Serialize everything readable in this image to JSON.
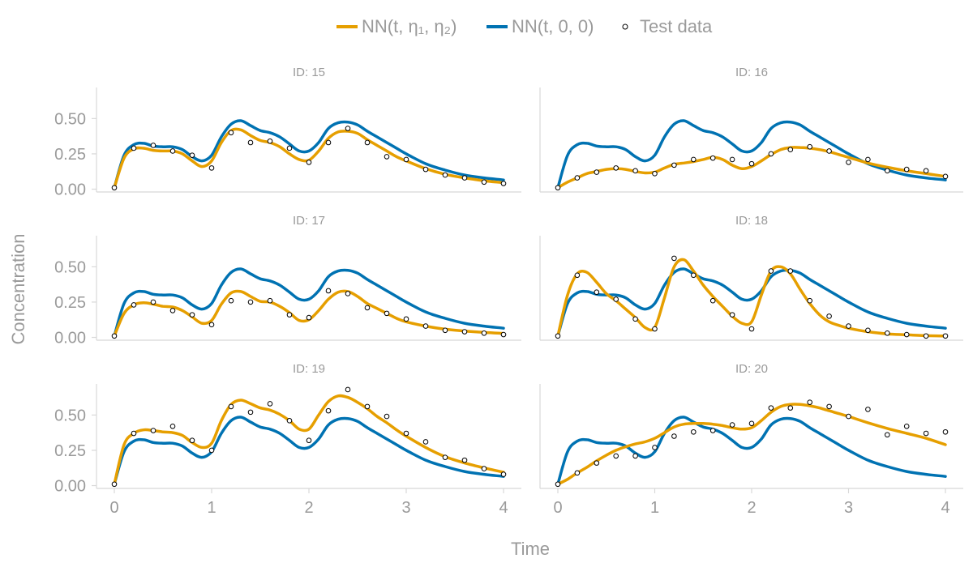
{
  "chart_data": {
    "type": "line",
    "xlabel": "Time",
    "ylabel": "Concentration",
    "xlim": [
      0,
      4
    ],
    "ylim": [
      -0.02,
      0.72
    ],
    "xticks": [
      0,
      1,
      2,
      3,
      4
    ],
    "xtick_labels": [
      "0",
      "1",
      "2",
      "3",
      "4"
    ],
    "yticks": [
      0,
      0.25,
      0.5
    ],
    "ytick_labels": [
      "0.00",
      "0.25",
      "0.50"
    ],
    "legend": {
      "position": "top-center",
      "entries": [
        {
          "label": "NN(t, η₁, η₂)",
          "kind": "line",
          "color": "#E69F00"
        },
        {
          "label": "NN(t, 0, 0)",
          "kind": "line",
          "color": "#0072B2"
        },
        {
          "label": "Test data",
          "kind": "marker",
          "color": "#000000"
        }
      ]
    },
    "curve_x": [
      0,
      0.1,
      0.2,
      0.3,
      0.4,
      0.5,
      0.6,
      0.7,
      0.8,
      0.9,
      1.0,
      1.1,
      1.2,
      1.3,
      1.4,
      1.5,
      1.6,
      1.7,
      1.8,
      1.9,
      2.0,
      2.1,
      2.2,
      2.3,
      2.4,
      2.5,
      2.6,
      2.7,
      2.8,
      2.9,
      3.0,
      3.2,
      3.4,
      3.6,
      3.8,
      4.0
    ],
    "population_series": {
      "name": "NN(t, 0, 0)",
      "color": "#0072B2",
      "y": [
        0.01,
        0.24,
        0.315,
        0.325,
        0.305,
        0.3,
        0.3,
        0.28,
        0.23,
        0.2,
        0.24,
        0.37,
        0.46,
        0.485,
        0.45,
        0.415,
        0.4,
        0.37,
        0.32,
        0.27,
        0.27,
        0.33,
        0.43,
        0.47,
        0.475,
        0.455,
        0.41,
        0.37,
        0.33,
        0.29,
        0.25,
        0.18,
        0.135,
        0.1,
        0.08,
        0.065
      ]
    },
    "panels": [
      {
        "title": "ID: 15",
        "fit": [
          0.01,
          0.22,
          0.285,
          0.29,
          0.275,
          0.27,
          0.27,
          0.25,
          0.2,
          0.16,
          0.2,
          0.33,
          0.415,
          0.42,
          0.38,
          0.345,
          0.33,
          0.3,
          0.25,
          0.21,
          0.205,
          0.27,
          0.36,
          0.405,
          0.41,
          0.395,
          0.35,
          0.31,
          0.27,
          0.23,
          0.2,
          0.145,
          0.105,
          0.08,
          0.06,
          0.045
        ],
        "test_x": [
          0,
          0.2,
          0.4,
          0.6,
          0.8,
          1.0,
          1.2,
          1.4,
          1.6,
          1.8,
          2.0,
          2.2,
          2.4,
          2.6,
          2.8,
          3.0,
          3.2,
          3.4,
          3.6,
          3.8,
          4.0
        ],
        "test_y": [
          0.01,
          0.29,
          0.31,
          0.27,
          0.24,
          0.15,
          0.4,
          0.33,
          0.34,
          0.29,
          0.19,
          0.33,
          0.43,
          0.33,
          0.23,
          0.21,
          0.14,
          0.1,
          0.08,
          0.05,
          0.04
        ]
      },
      {
        "title": "ID: 16",
        "fit": [
          0.01,
          0.05,
          0.08,
          0.11,
          0.125,
          0.14,
          0.145,
          0.14,
          0.125,
          0.115,
          0.12,
          0.15,
          0.175,
          0.185,
          0.195,
          0.21,
          0.225,
          0.21,
          0.17,
          0.145,
          0.16,
          0.2,
          0.245,
          0.28,
          0.295,
          0.295,
          0.29,
          0.28,
          0.265,
          0.245,
          0.225,
          0.185,
          0.155,
          0.13,
          0.11,
          0.09
        ],
        "test_x": [
          0,
          0.2,
          0.4,
          0.6,
          0.8,
          1.0,
          1.2,
          1.4,
          1.6,
          1.8,
          2.0,
          2.2,
          2.4,
          2.6,
          2.8,
          3.0,
          3.2,
          3.4,
          3.6,
          3.8,
          4.0
        ],
        "test_y": [
          0.01,
          0.08,
          0.12,
          0.15,
          0.13,
          0.11,
          0.17,
          0.21,
          0.22,
          0.21,
          0.18,
          0.25,
          0.28,
          0.3,
          0.27,
          0.19,
          0.21,
          0.13,
          0.14,
          0.13,
          0.09
        ]
      },
      {
        "title": "ID: 17",
        "fit": [
          0.01,
          0.17,
          0.23,
          0.245,
          0.235,
          0.22,
          0.215,
          0.19,
          0.145,
          0.1,
          0.12,
          0.235,
          0.315,
          0.325,
          0.29,
          0.255,
          0.25,
          0.22,
          0.175,
          0.12,
          0.125,
          0.19,
          0.27,
          0.32,
          0.325,
          0.29,
          0.24,
          0.205,
          0.17,
          0.135,
          0.11,
          0.08,
          0.058,
          0.045,
          0.035,
          0.028
        ],
        "test_x": [
          0,
          0.2,
          0.4,
          0.6,
          0.8,
          1.0,
          1.2,
          1.4,
          1.6,
          1.8,
          2.0,
          2.2,
          2.4,
          2.6,
          2.8,
          3.0,
          3.2,
          3.4,
          3.6,
          3.8,
          4.0
        ],
        "test_y": [
          0.01,
          0.23,
          0.25,
          0.19,
          0.16,
          0.09,
          0.26,
          0.25,
          0.26,
          0.16,
          0.14,
          0.33,
          0.31,
          0.21,
          0.17,
          0.13,
          0.08,
          0.05,
          0.04,
          0.03,
          0.02
        ]
      },
      {
        "title": "ID: 18",
        "fit": [
          0.01,
          0.3,
          0.45,
          0.46,
          0.39,
          0.31,
          0.26,
          0.2,
          0.14,
          0.07,
          0.07,
          0.28,
          0.5,
          0.55,
          0.47,
          0.37,
          0.29,
          0.22,
          0.15,
          0.1,
          0.11,
          0.3,
          0.47,
          0.5,
          0.45,
          0.34,
          0.24,
          0.16,
          0.11,
          0.085,
          0.065,
          0.04,
          0.025,
          0.018,
          0.012,
          0.01
        ],
        "test_x": [
          0,
          0.2,
          0.4,
          0.6,
          0.8,
          1.0,
          1.2,
          1.4,
          1.6,
          1.8,
          2.0,
          2.2,
          2.4,
          2.6,
          2.8,
          3.0,
          3.2,
          3.4,
          3.6,
          3.8,
          4.0
        ],
        "test_y": [
          0.01,
          0.44,
          0.32,
          0.27,
          0.13,
          0.06,
          0.56,
          0.44,
          0.26,
          0.16,
          0.06,
          0.47,
          0.47,
          0.26,
          0.15,
          0.08,
          0.05,
          0.03,
          0.02,
          0.01,
          0.01
        ]
      },
      {
        "title": "ID: 19",
        "fit": [
          0.01,
          0.29,
          0.37,
          0.395,
          0.39,
          0.38,
          0.375,
          0.355,
          0.305,
          0.27,
          0.3,
          0.46,
          0.575,
          0.605,
          0.58,
          0.55,
          0.535,
          0.505,
          0.46,
          0.4,
          0.4,
          0.5,
          0.595,
          0.635,
          0.625,
          0.59,
          0.545,
          0.49,
          0.445,
          0.395,
          0.35,
          0.27,
          0.205,
          0.16,
          0.125,
          0.095
        ],
        "test_x": [
          0,
          0.2,
          0.4,
          0.6,
          0.8,
          1.0,
          1.2,
          1.4,
          1.6,
          1.8,
          2.0,
          2.2,
          2.4,
          2.6,
          2.8,
          3.0,
          3.2,
          3.4,
          3.6,
          3.8,
          4.0
        ],
        "test_y": [
          0.01,
          0.37,
          0.39,
          0.42,
          0.32,
          0.25,
          0.56,
          0.52,
          0.58,
          0.46,
          0.32,
          0.53,
          0.68,
          0.56,
          0.49,
          0.37,
          0.31,
          0.2,
          0.18,
          0.12,
          0.08
        ]
      },
      {
        "title": "ID: 20",
        "fit": [
          0.01,
          0.045,
          0.09,
          0.13,
          0.175,
          0.215,
          0.25,
          0.275,
          0.295,
          0.31,
          0.335,
          0.375,
          0.415,
          0.435,
          0.44,
          0.44,
          0.435,
          0.425,
          0.41,
          0.4,
          0.41,
          0.46,
          0.52,
          0.56,
          0.575,
          0.575,
          0.565,
          0.55,
          0.53,
          0.51,
          0.49,
          0.445,
          0.405,
          0.37,
          0.335,
          0.29
        ],
        "test_x": [
          0,
          0.2,
          0.4,
          0.6,
          0.8,
          1.0,
          1.2,
          1.4,
          1.6,
          1.8,
          2.0,
          2.2,
          2.4,
          2.6,
          2.8,
          3.0,
          3.2,
          3.4,
          3.6,
          3.8,
          4.0
        ],
        "test_y": [
          0.01,
          0.09,
          0.16,
          0.21,
          0.21,
          0.27,
          0.35,
          0.38,
          0.39,
          0.43,
          0.44,
          0.55,
          0.55,
          0.59,
          0.56,
          0.49,
          0.54,
          0.36,
          0.42,
          0.37,
          0.38
        ]
      }
    ]
  }
}
